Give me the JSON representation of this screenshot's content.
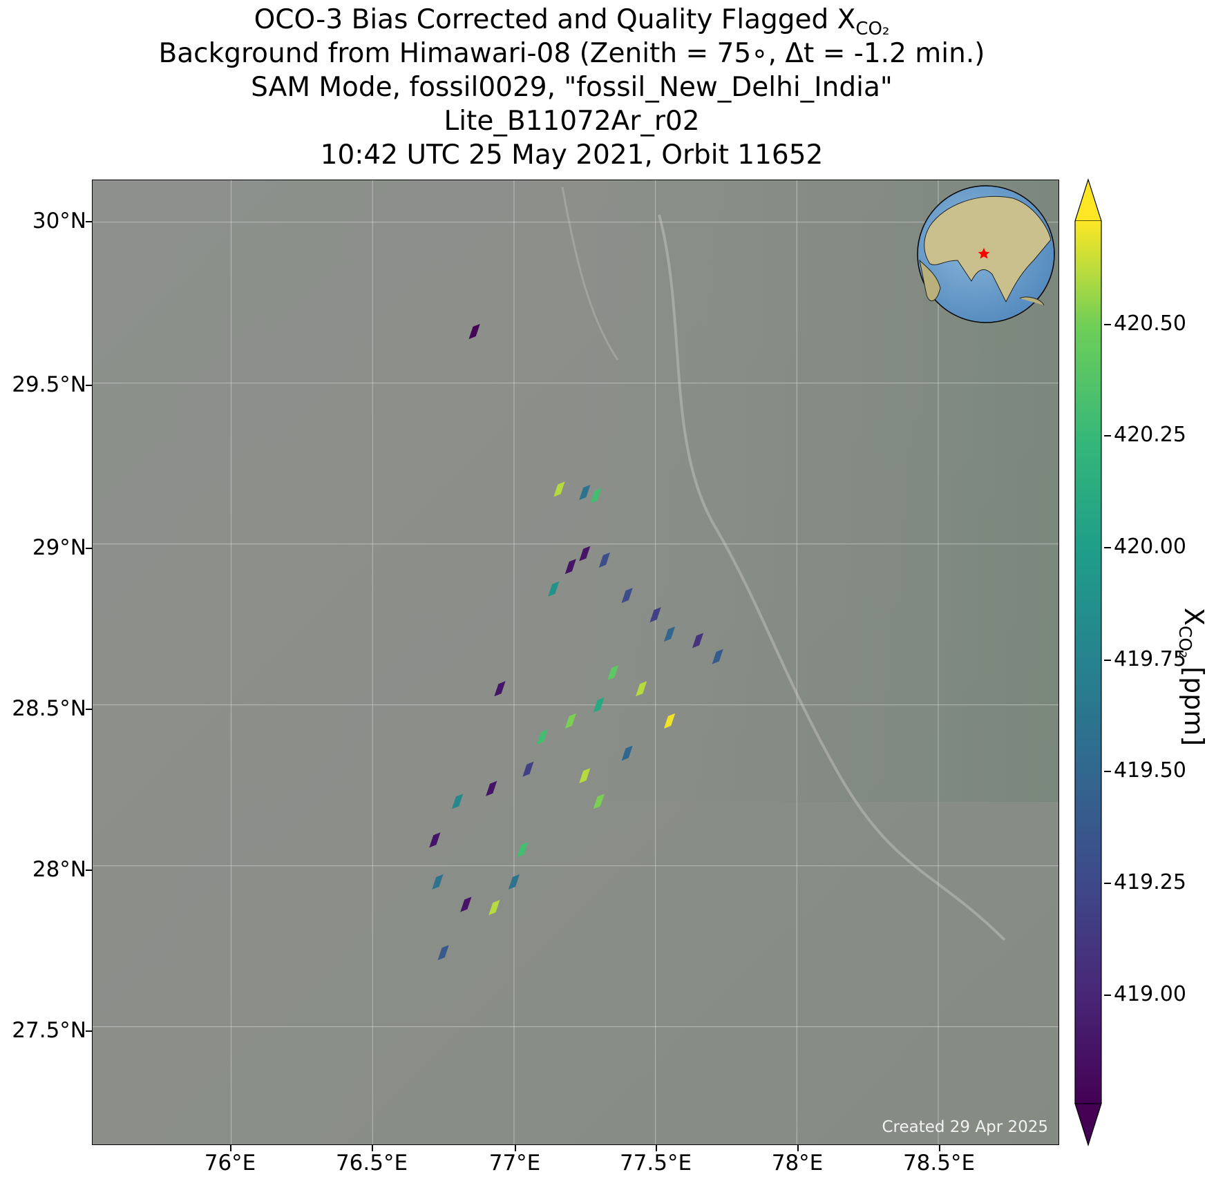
{
  "title": {
    "line1_main": "OCO-3 Bias Corrected and Quality Flagged X",
    "line1_sub": "CO₂",
    "line2": "Background from Himawari-08 (Zenith = 75∘, Δt = -1.2 min.)",
    "line3": "SAM Mode, fossil0029, \"fossil_New_Delhi_India\"",
    "line4": "Lite_B11072Ar_r02",
    "line5": "10:42 UTC 25 May 2021, Orbit 11652"
  },
  "map": {
    "lat_ticks": [
      "30°N",
      "29.5°N",
      "29°N",
      "28.5°N",
      "28°N",
      "27.5°N"
    ],
    "lon_ticks": [
      "76°E",
      "76.5°E",
      "77°E",
      "77.5°E",
      "78°E",
      "78.5°E"
    ],
    "extent": {
      "lon_min": 75.51,
      "lon_max": 78.93,
      "lat_min": 27.13,
      "lat_max": 30.13
    },
    "created_text": "Created 29 Apr 2025",
    "background_color": "#8f918c",
    "target_marker": "red-star",
    "target_location": {
      "lon": 77.2,
      "lat": 28.6
    }
  },
  "colorbar": {
    "label_main": "X",
    "label_sub": "CO₂",
    "label_unit": " [ppm]",
    "ticks": [
      "420.50",
      "420.25",
      "420.00",
      "419.75",
      "419.50",
      "419.25",
      "419.00"
    ],
    "tick_values": [
      420.5,
      420.25,
      420.0,
      419.75,
      419.5,
      419.25,
      419.0
    ],
    "vmin": 418.78,
    "vmax": 420.72,
    "colormap": "viridis",
    "extend": "both"
  },
  "chart_data": {
    "type": "heatmap",
    "description_units": "XCO2 [ppm] soundings over lon/lat",
    "samples": [
      {
        "lon": 76.86,
        "lat": 29.66,
        "xco2": 418.8
      },
      {
        "lon": 77.16,
        "lat": 29.17,
        "xco2": 420.6
      },
      {
        "lon": 77.25,
        "lat": 29.16,
        "xco2": 419.6
      },
      {
        "lon": 77.29,
        "lat": 29.15,
        "xco2": 420.3
      },
      {
        "lon": 77.25,
        "lat": 28.97,
        "xco2": 418.9
      },
      {
        "lon": 77.2,
        "lat": 28.93,
        "xco2": 418.9
      },
      {
        "lon": 77.32,
        "lat": 28.95,
        "xco2": 419.3
      },
      {
        "lon": 77.14,
        "lat": 28.86,
        "xco2": 419.9
      },
      {
        "lon": 77.4,
        "lat": 28.84,
        "xco2": 419.3
      },
      {
        "lon": 77.5,
        "lat": 28.78,
        "xco2": 419.2
      },
      {
        "lon": 77.55,
        "lat": 28.72,
        "xco2": 419.5
      },
      {
        "lon": 77.65,
        "lat": 28.7,
        "xco2": 419.1
      },
      {
        "lon": 77.72,
        "lat": 28.65,
        "xco2": 419.4
      },
      {
        "lon": 77.35,
        "lat": 28.6,
        "xco2": 420.4
      },
      {
        "lon": 77.45,
        "lat": 28.55,
        "xco2": 420.6
      },
      {
        "lon": 77.3,
        "lat": 28.5,
        "xco2": 420.1
      },
      {
        "lon": 77.2,
        "lat": 28.45,
        "xco2": 420.5
      },
      {
        "lon": 77.55,
        "lat": 28.45,
        "xco2": 420.7
      },
      {
        "lon": 77.1,
        "lat": 28.4,
        "xco2": 420.3
      },
      {
        "lon": 77.4,
        "lat": 28.35,
        "xco2": 419.5
      },
      {
        "lon": 77.25,
        "lat": 28.28,
        "xco2": 420.6
      },
      {
        "lon": 77.3,
        "lat": 28.2,
        "xco2": 420.5
      },
      {
        "lon": 77.05,
        "lat": 28.3,
        "xco2": 419.2
      },
      {
        "lon": 76.95,
        "lat": 28.55,
        "xco2": 418.9
      },
      {
        "lon": 76.92,
        "lat": 28.24,
        "xco2": 418.9
      },
      {
        "lon": 76.8,
        "lat": 28.2,
        "xco2": 419.8
      },
      {
        "lon": 76.72,
        "lat": 28.08,
        "xco2": 418.9
      },
      {
        "lon": 77.03,
        "lat": 28.05,
        "xco2": 420.3
      },
      {
        "lon": 77.0,
        "lat": 27.95,
        "xco2": 419.6
      },
      {
        "lon": 76.93,
        "lat": 27.87,
        "xco2": 420.6
      },
      {
        "lon": 76.75,
        "lat": 27.73,
        "xco2": 419.4
      },
      {
        "lon": 76.73,
        "lat": 27.95,
        "xco2": 419.6
      },
      {
        "lon": 76.83,
        "lat": 27.88,
        "xco2": 418.9
      }
    ]
  }
}
